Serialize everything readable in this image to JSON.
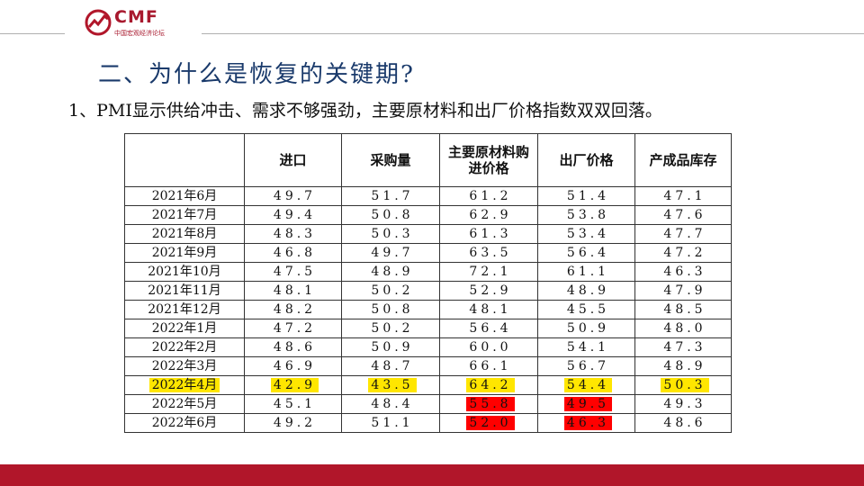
{
  "header": {
    "logo_text": "CMF",
    "logo_subtext": "中国宏观经济论坛",
    "accent_color": "#b1162a"
  },
  "slide": {
    "title": "二、为什么是恢复的关键期?",
    "subtitle": "1、PMI显示供给冲击、需求不够强劲，主要原材料和出厂价格指数双双回落。"
  },
  "table": {
    "columns": [
      "",
      "进口",
      "采购量",
      "主要原材料购进价格",
      "出厂价格",
      "产成品库存"
    ],
    "rows": [
      {
        "label": "2021年6月",
        "cells": [
          "49.7",
          "51.7",
          "61.2",
          "51.4",
          "47.1"
        ]
      },
      {
        "label": "2021年7月",
        "cells": [
          "49.4",
          "50.8",
          "62.9",
          "53.8",
          "47.6"
        ]
      },
      {
        "label": "2021年8月",
        "cells": [
          "48.3",
          "50.3",
          "61.3",
          "53.4",
          "47.7"
        ]
      },
      {
        "label": "2021年9月",
        "cells": [
          "46.8",
          "49.7",
          "63.5",
          "56.4",
          "47.2"
        ]
      },
      {
        "label": "2021年10月",
        "cells": [
          "47.5",
          "48.9",
          "72.1",
          "61.1",
          "46.3"
        ]
      },
      {
        "label": "2021年11月",
        "cells": [
          "48.1",
          "50.2",
          "52.9",
          "48.9",
          "47.9"
        ]
      },
      {
        "label": "2021年12月",
        "cells": [
          "48.2",
          "50.8",
          "48.1",
          "45.5",
          "48.5"
        ]
      },
      {
        "label": "2022年1月",
        "cells": [
          "47.2",
          "50.2",
          "56.4",
          "50.9",
          "48.0"
        ]
      },
      {
        "label": "2022年2月",
        "cells": [
          "48.6",
          "50.9",
          "60.0",
          "54.1",
          "47.3"
        ]
      },
      {
        "label": "2022年3月",
        "cells": [
          "46.9",
          "48.7",
          "66.1",
          "56.7",
          "48.9"
        ]
      },
      {
        "label": "2022年4月",
        "cells": [
          "42.9",
          "43.5",
          "64.2",
          "54.4",
          "50.3"
        ]
      },
      {
        "label": "2022年5月",
        "cells": [
          "45.1",
          "48.4",
          "55.8",
          "49.5",
          "49.3"
        ]
      },
      {
        "label": "2022年6月",
        "cells": [
          "49.2",
          "51.1",
          "52.0",
          "46.3",
          "48.6"
        ]
      }
    ],
    "highlight_colors": {
      "yellow": "#ffe600",
      "red": "#ff0000"
    }
  }
}
